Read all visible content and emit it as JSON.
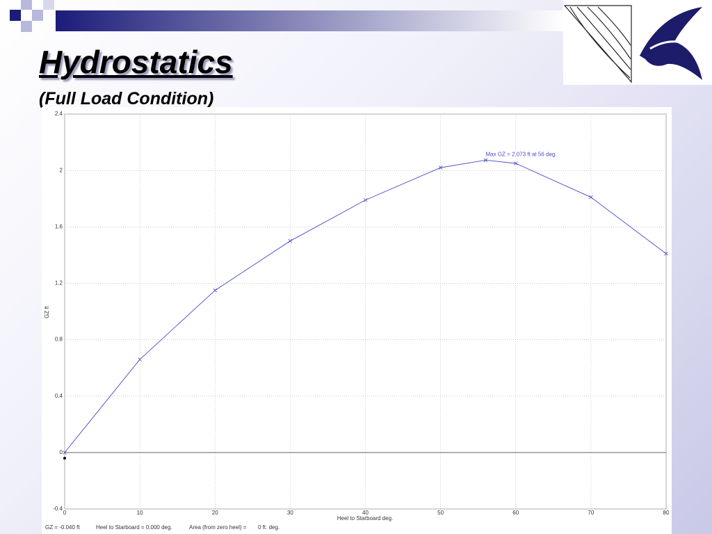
{
  "header": {
    "title": "Hydrostatics",
    "subtitle": "(Full Load Condition)"
  },
  "chart_data": {
    "type": "line",
    "x_label": "Heel to Starboard   deg.",
    "y_label": "GZ  ft",
    "annotation": "Max GZ = 2.073 ft at 56 deg.",
    "x": [
      0,
      10,
      20,
      30,
      40,
      50,
      56,
      60,
      70,
      80
    ],
    "values": [
      0,
      0.66,
      1.15,
      1.5,
      1.79,
      2.02,
      2.073,
      2.05,
      1.81,
      1.41
    ],
    "color": "#4a4ac8",
    "xlim": [
      0,
      80
    ],
    "xticks": [
      0,
      10,
      20,
      30,
      40,
      50,
      60,
      70,
      80
    ],
    "ylim": [
      -0.4,
      2.4
    ],
    "yticks": [
      -0.4,
      0,
      0.4,
      0.8,
      1.2,
      1.6,
      2,
      2.4
    ],
    "grid": true,
    "cursor_point": {
      "x": 0,
      "y": -0.04
    }
  },
  "status_bar": [
    "GZ =  -0.040 ft",
    "Heel to Starboard =  0.000  deg.",
    "Area (from zero heel) =",
    "0 ft. deg."
  ]
}
